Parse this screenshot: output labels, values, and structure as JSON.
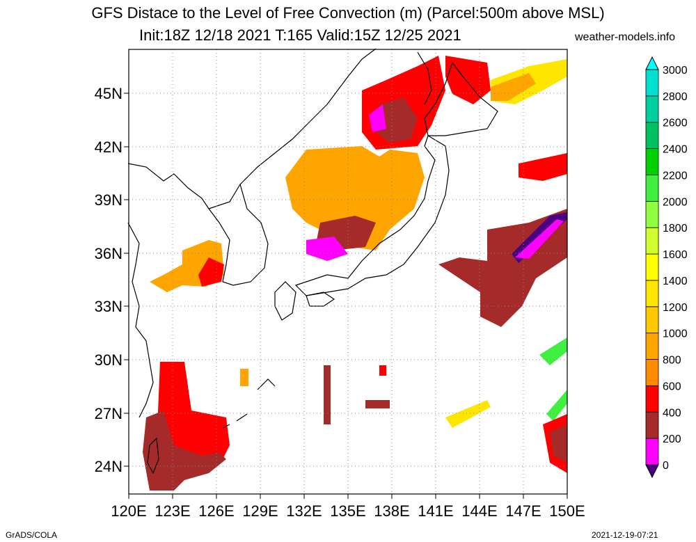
{
  "header": {
    "title": "GFS Distace to the Level of Free Convection (m) (Parcel:500m above MSL)",
    "subtitle": "Init:18Z 12/18 2021 T:165 Valid:15Z 12/25 2021",
    "site": "weather-models.info"
  },
  "footer": {
    "left": "GrADS/COLA",
    "right": "2021-12-19-07:21"
  },
  "map": {
    "lat_labels": [
      "45N",
      "42N",
      "39N",
      "36N",
      "33N",
      "30N",
      "27N",
      "24N"
    ],
    "lon_labels": [
      "120E",
      "123E",
      "126E",
      "129E",
      "132E",
      "135E",
      "138E",
      "141E",
      "144E",
      "147E",
      "150E"
    ],
    "lon_range": [
      120,
      150
    ],
    "lat_range": [
      22.5,
      47.5
    ],
    "grid": "dotted"
  },
  "colorbar": {
    "labels": [
      "0",
      "200",
      "400",
      "600",
      "800",
      "1000",
      "1200",
      "1400",
      "1600",
      "1800",
      "2000",
      "2200",
      "2400",
      "2600",
      "2800",
      "3000"
    ],
    "colors": [
      "#4b0082",
      "#ff00ff",
      "#a52a2a",
      "#ff0000",
      "#ff8c00",
      "#ffa500",
      "#ffc800",
      "#ffe600",
      "#ffff00",
      "#d0ff30",
      "#90ff40",
      "#40f040",
      "#00d000",
      "#00c060",
      "#00d0a0",
      "#00e0d0",
      "#00ffff"
    ]
  }
}
